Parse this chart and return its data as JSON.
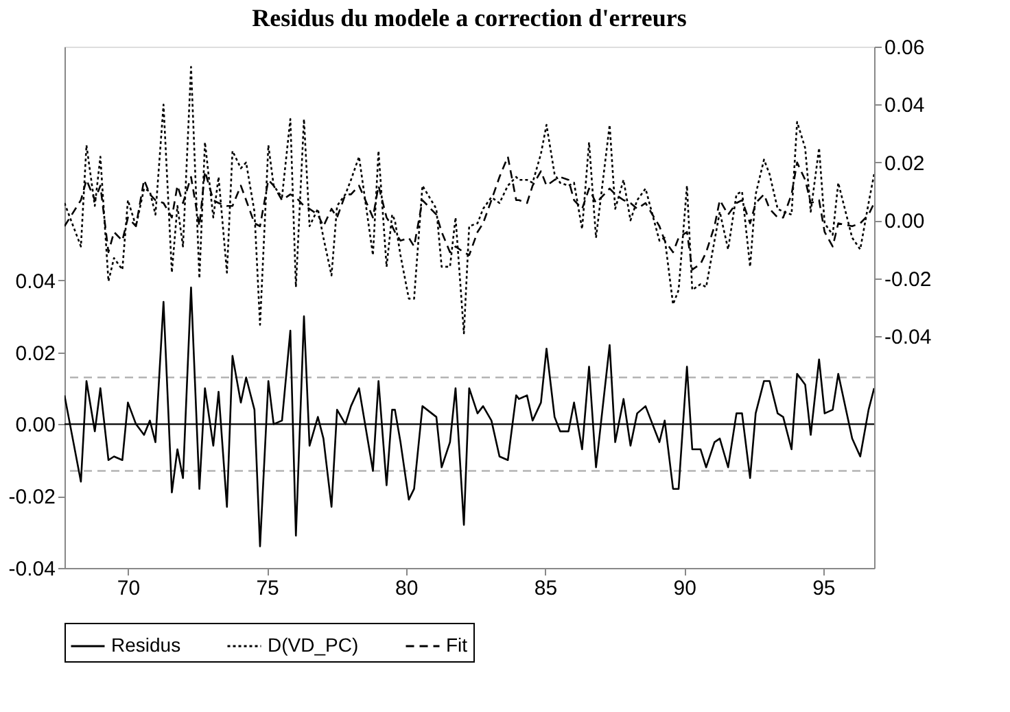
{
  "chart_data": {
    "type": "line",
    "title": "Residus du modele a correction d'erreurs",
    "x": [
      67.72,
      68.31,
      68.51,
      68.81,
      69.01,
      69.3,
      69.5,
      69.8,
      70.0,
      70.29,
      70.58,
      70.79,
      70.99,
      71.28,
      71.58,
      71.78,
      71.98,
      72.27,
      72.57,
      72.77,
      73.07,
      73.26,
      73.56,
      73.76,
      74.06,
      74.25,
      74.55,
      74.75,
      75.05,
      75.24,
      75.54,
      75.84,
      76.04,
      76.33,
      76.53,
      76.83,
      77.03,
      77.32,
      77.52,
      77.82,
      78.02,
      78.31,
      78.81,
      79.01,
      79.3,
      79.5,
      79.6,
      79.8,
      80.1,
      80.29,
      80.59,
      81.09,
      81.28,
      81.58,
      81.78,
      82.08,
      82.27,
      82.57,
      82.77,
      83.07,
      83.36,
      83.66,
      83.96,
      84.06,
      84.35,
      84.55,
      84.85,
      85.05,
      85.34,
      85.54,
      85.84,
      86.04,
      86.33,
      86.58,
      86.83,
      87.32,
      87.52,
      87.82,
      88.07,
      88.31,
      88.61,
      89.11,
      89.3,
      89.6,
      89.8,
      90.1,
      90.29,
      90.59,
      90.79,
      91.09,
      91.28,
      91.58,
      91.88,
      92.08,
      92.37,
      92.57,
      92.87,
      93.07,
      93.36,
      93.56,
      93.86,
      94.06,
      94.35,
      94.55,
      94.85,
      95.05,
      95.34,
      95.54,
      96.04,
      96.33,
      96.63,
      96.83
    ],
    "series": [
      {
        "name": "Residus",
        "color": "#000000",
        "line_style": "solid",
        "axis": "y",
        "values": [
          0.008,
          -0.016,
          0.012,
          -0.002,
          0.01,
          -0.01,
          -0.009,
          -0.01,
          0.006,
          0.0,
          -0.003,
          0.001,
          -0.005,
          0.034,
          -0.019,
          -0.007,
          -0.015,
          0.038,
          -0.018,
          0.01,
          -0.006,
          0.009,
          -0.023,
          0.019,
          0.006,
          0.013,
          0.004,
          -0.034,
          0.012,
          0.0,
          0.001,
          0.026,
          -0.031,
          0.03,
          -0.006,
          0.002,
          -0.004,
          -0.023,
          0.004,
          0.0,
          0.005,
          0.01,
          -0.013,
          0.012,
          -0.017,
          0.004,
          0.004,
          -0.005,
          -0.021,
          -0.018,
          0.005,
          0.002,
          -0.012,
          -0.005,
          0.01,
          -0.028,
          0.01,
          0.003,
          0.005,
          0.001,
          -0.009,
          -0.01,
          0.008,
          0.007,
          0.008,
          0.001,
          0.006,
          0.021,
          0.002,
          -0.002,
          -0.002,
          0.006,
          -0.007,
          0.016,
          -0.012,
          0.022,
          -0.005,
          0.007,
          -0.006,
          0.003,
          0.005,
          -0.005,
          0.001,
          -0.018,
          -0.018,
          0.016,
          -0.007,
          -0.007,
          -0.012,
          -0.005,
          -0.004,
          -0.012,
          0.003,
          0.003,
          -0.015,
          0.003,
          0.012,
          0.012,
          0.003,
          0.002,
          -0.007,
          0.014,
          0.011,
          -0.003,
          0.018,
          0.003,
          0.004,
          0.014,
          -0.004,
          -0.009,
          0.004,
          0.01
        ]
      },
      {
        "name": "D(VD_PC)",
        "color": "#000000",
        "line_style": "dotted",
        "axis": "y2",
        "values": [
          0.006,
          -0.009,
          0.026,
          0.005,
          0.022,
          -0.021,
          -0.013,
          -0.017,
          0.007,
          -0.002,
          0.011,
          0.01,
          0.002,
          0.04,
          -0.018,
          0.005,
          -0.009,
          0.053,
          -0.02,
          0.027,
          0.001,
          0.015,
          -0.018,
          0.024,
          0.018,
          0.02,
          0.003,
          -0.036,
          0.026,
          0.012,
          0.008,
          0.035,
          -0.023,
          0.035,
          -0.002,
          0.004,
          -0.006,
          -0.019,
          0.005,
          0.009,
          0.014,
          0.022,
          -0.012,
          0.024,
          -0.016,
          0.002,
          0.0,
          -0.012,
          -0.027,
          -0.027,
          0.012,
          0.004,
          -0.016,
          -0.016,
          0.001,
          -0.039,
          -0.002,
          -0.001,
          0.004,
          0.008,
          0.006,
          0.012,
          0.015,
          0.014,
          0.014,
          0.013,
          0.023,
          0.033,
          0.016,
          0.013,
          0.012,
          0.013,
          -0.003,
          0.027,
          -0.006,
          0.033,
          0.004,
          0.014,
          0.0,
          0.007,
          0.011,
          -0.007,
          -0.006,
          -0.029,
          -0.024,
          0.012,
          -0.024,
          -0.022,
          -0.023,
          -0.007,
          0.003,
          -0.01,
          0.009,
          0.01,
          -0.016,
          0.009,
          0.021,
          0.016,
          0.004,
          0.003,
          0.002,
          0.034,
          0.025,
          0.003,
          0.025,
          -0.001,
          -0.005,
          0.013,
          -0.006,
          -0.01,
          0.006,
          0.016
        ]
      },
      {
        "name": "Fit",
        "color": "#000000",
        "line_style": "dashed",
        "axis": "y2",
        "values": [
          -0.002,
          0.007,
          0.014,
          0.007,
          0.012,
          -0.011,
          -0.004,
          -0.007,
          0.001,
          -0.002,
          0.014,
          0.009,
          0.007,
          0.006,
          0.001,
          0.012,
          0.006,
          0.015,
          -0.002,
          0.017,
          0.007,
          0.006,
          0.005,
          0.005,
          0.012,
          0.007,
          -0.001,
          -0.002,
          0.014,
          0.012,
          0.007,
          0.009,
          0.008,
          0.005,
          0.004,
          0.002,
          -0.002,
          0.004,
          0.001,
          0.009,
          0.009,
          0.012,
          0.001,
          0.012,
          0.001,
          -0.002,
          -0.004,
          -0.007,
          -0.006,
          -0.009,
          0.007,
          0.002,
          -0.004,
          -0.011,
          -0.009,
          -0.011,
          -0.012,
          -0.004,
          -0.001,
          0.007,
          0.015,
          0.022,
          0.007,
          0.007,
          0.006,
          0.012,
          0.017,
          0.012,
          0.014,
          0.015,
          0.014,
          0.007,
          0.004,
          0.011,
          0.006,
          0.011,
          0.009,
          0.007,
          0.006,
          0.004,
          0.006,
          -0.002,
          -0.007,
          -0.011,
          -0.006,
          -0.004,
          -0.017,
          -0.015,
          -0.011,
          -0.002,
          0.007,
          0.002,
          0.006,
          0.007,
          -0.001,
          0.006,
          0.009,
          0.004,
          0.001,
          0.001,
          0.009,
          0.02,
          0.014,
          0.006,
          0.007,
          -0.004,
          -0.009,
          -0.001,
          -0.002,
          -0.001,
          0.002,
          0.006
        ]
      }
    ],
    "xlim": [
      67.72,
      96.83
    ],
    "xticks": [
      70,
      75,
      80,
      85,
      90,
      95
    ],
    "ylim": [
      -0.04,
      0.105
    ],
    "yticks": [
      {
        "value": -0.04,
        "label": "-0.04"
      },
      {
        "value": -0.02,
        "label": "-0.02"
      },
      {
        "value": 0,
        "label": "0.00"
      },
      {
        "value": 0.02,
        "label": "0.02"
      },
      {
        "value": 0.04,
        "label": "0.04"
      }
    ],
    "y2lim": [
      -0.12,
      0.06
    ],
    "y2ticks": [
      {
        "value": -0.04,
        "label": "-0.04"
      },
      {
        "value": -0.02,
        "label": "-0.02"
      },
      {
        "value": 0,
        "label": "0.00"
      },
      {
        "value": 0.02,
        "label": "0.02"
      },
      {
        "value": 0.04,
        "label": "0.04"
      },
      {
        "value": 0.06,
        "label": "0.06"
      }
    ],
    "ref_lines": [
      {
        "axis": "y",
        "value": 0,
        "color": "#000000",
        "line_style": "solid"
      },
      {
        "axis": "y",
        "value": 0.013,
        "color": "#b4b4b4",
        "line_style": "dashed"
      },
      {
        "axis": "y",
        "value": -0.013,
        "color": "#b4b4b4",
        "line_style": "dashed"
      }
    ],
    "grid": false,
    "legend": "bottom"
  }
}
